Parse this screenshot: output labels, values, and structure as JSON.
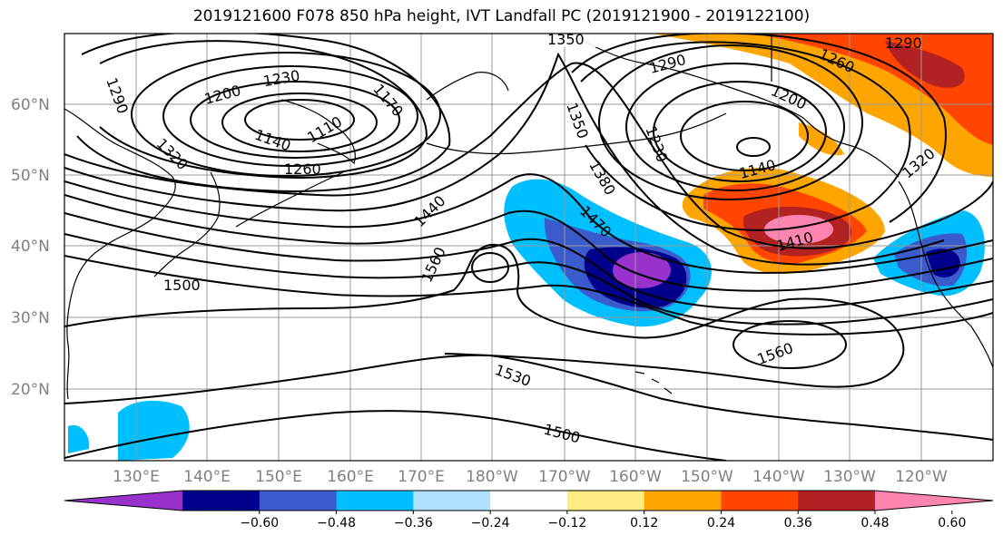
{
  "title": "2019121600 F078 850 hPa height, IVT Landfall PC (2019121900 - 2019122100)",
  "lat_labels": [
    "60°N",
    "50°N",
    "40°N",
    "30°N",
    "20°N"
  ],
  "lon_labels": [
    "130°E",
    "140°E",
    "150°E",
    "160°E",
    "170°E",
    "180°W",
    "170°W",
    "160°W",
    "150°W",
    "140°W",
    "130°W",
    "120°W"
  ],
  "colorbar": {
    "colors": [
      "#9932cc",
      "#00008b",
      "#3b5bcc",
      "#00bfff",
      "#b0e0ff",
      "#ffffff",
      "#ffeb80",
      "#ffa500",
      "#ff4500",
      "#b22222",
      "#ff85b0"
    ],
    "tick_labels": [
      "-0.60",
      "-0.48",
      "-0.36",
      "-0.24",
      "-0.12",
      "0.12",
      "0.24",
      "0.36",
      "0.48",
      "0.60"
    ]
  },
  "contour_labels": [
    "1350",
    "1290",
    "1290",
    "1260",
    "1230",
    "1200",
    "1170",
    "1110",
    "1140",
    "1260",
    "1290",
    "1320",
    "1350",
    "1200",
    "1230",
    "1380",
    "1140",
    "1440",
    "1470",
    "1410",
    "1560",
    "1500",
    "1560",
    "1320",
    "1530",
    "1500"
  ]
}
